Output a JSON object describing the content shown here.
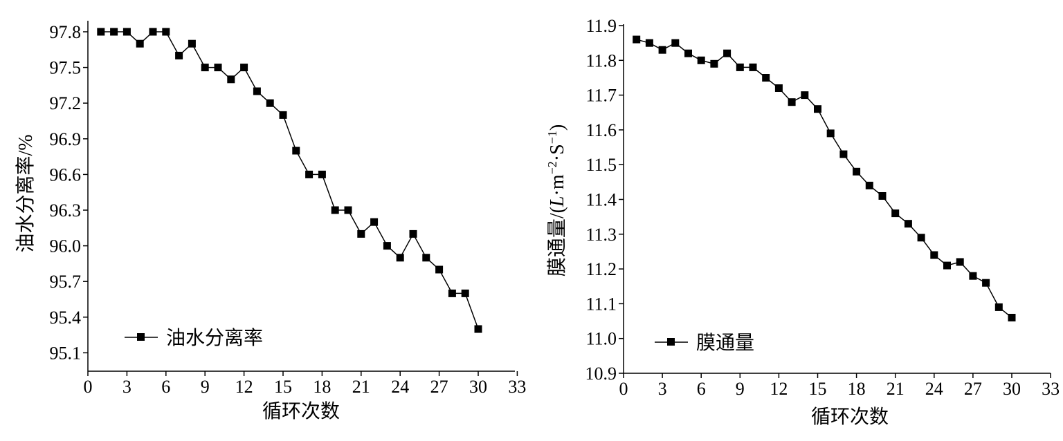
{
  "chart_data": [
    {
      "type": "line",
      "xlabel": "循环次数",
      "ylabel": "油水分离率/%",
      "xlim": [
        0,
        33
      ],
      "ylim": [
        95.0,
        97.9
      ],
      "xticks": [
        "0",
        "3",
        "6",
        "9",
        "12",
        "15",
        "18",
        "21",
        "24",
        "27",
        "30",
        "33"
      ],
      "yticks": [
        "95.1",
        "95.4",
        "95.7",
        "96.0",
        "96.3",
        "96.6",
        "96.9",
        "97.2",
        "97.5",
        "97.8"
      ],
      "legend_position": "lower-left",
      "series": [
        {
          "name": "油水分离率",
          "marker": "square",
          "color": "#000000",
          "x": [
            1,
            2,
            3,
            4,
            5,
            6,
            7,
            8,
            9,
            10,
            11,
            12,
            13,
            14,
            15,
            16,
            17,
            18,
            19,
            20,
            21,
            22,
            23,
            24,
            25,
            26,
            27,
            28,
            29,
            30
          ],
          "y": [
            97.8,
            97.8,
            97.8,
            97.7,
            97.8,
            97.8,
            97.6,
            97.7,
            97.5,
            97.5,
            97.4,
            97.5,
            97.3,
            97.2,
            97.1,
            96.8,
            96.6,
            96.6,
            96.3,
            96.3,
            96.1,
            96.2,
            96.0,
            95.9,
            96.1,
            95.9,
            95.8,
            95.6,
            95.6,
            95.3
          ]
        }
      ]
    },
    {
      "type": "line",
      "xlabel": "循环次数",
      "ylabel": {
        "prefix": "膜通量/(",
        "L": "L",
        "m": "·m",
        "exp1": "−2",
        "s": "·S",
        "exp2": "−1",
        "suffix": ")"
      },
      "xlim": [
        0,
        33
      ],
      "ylim": [
        10.9,
        11.9
      ],
      "xticks": [
        "0",
        "3",
        "6",
        "9",
        "12",
        "15",
        "18",
        "21",
        "24",
        "27",
        "30",
        "33"
      ],
      "yticks": [
        "10.9",
        "11.0",
        "11.1",
        "11.2",
        "11.3",
        "11.4",
        "11.5",
        "11.6",
        "11.7",
        "11.8",
        "11.9"
      ],
      "legend_position": "lower-left",
      "series": [
        {
          "name": "膜通量",
          "marker": "square",
          "color": "#000000",
          "x": [
            1,
            2,
            3,
            4,
            5,
            6,
            7,
            8,
            9,
            10,
            11,
            12,
            13,
            14,
            15,
            16,
            17,
            18,
            19,
            20,
            21,
            22,
            23,
            24,
            25,
            26,
            27,
            28,
            29,
            30
          ],
          "y": [
            11.86,
            11.85,
            11.83,
            11.85,
            11.82,
            11.8,
            11.79,
            11.82,
            11.78,
            11.78,
            11.75,
            11.72,
            11.68,
            11.7,
            11.66,
            11.59,
            11.53,
            11.48,
            11.44,
            11.41,
            11.36,
            11.33,
            11.29,
            11.24,
            11.21,
            11.22,
            11.18,
            11.16,
            11.09,
            11.06
          ]
        }
      ]
    }
  ]
}
